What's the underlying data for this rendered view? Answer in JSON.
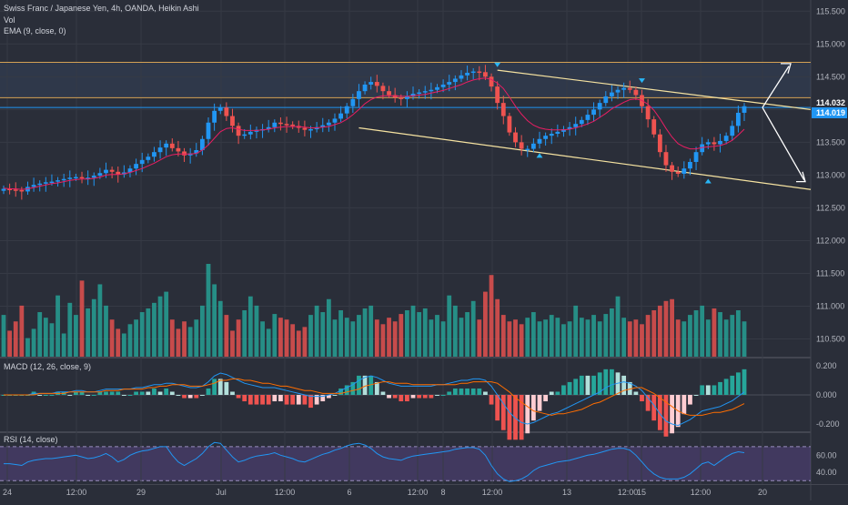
{
  "header": {
    "symbol": "Swiss Franc / Japanese Yen, 4h, OANDA, Heikin Ashi",
    "vol": "Vol",
    "ema": "EMA (9, close, 0)",
    "macd": "MACD (12, 26, close, 9)",
    "rsi": "RSI (14, close)"
  },
  "chart_data": [
    {
      "type": "candlestick",
      "title": "Swiss Franc / Japanese Yen, 4h, OANDA, Heikin Ashi",
      "x_ticks": [
        "24",
        "12:00",
        "29",
        "Jul",
        "12:00",
        "6",
        "12:00",
        "8",
        "12:00",
        "13",
        "12:00",
        "15",
        "12:00",
        "20"
      ],
      "price_ticks": [
        "115.500",
        "115.000",
        "114.500",
        "114.000",
        "113.500",
        "113.000",
        "112.500",
        "112.000",
        "111.500",
        "111.000",
        "110.500"
      ],
      "ylim": [
        110.23,
        115.67
      ],
      "last_price_labels": [
        "114.032",
        "114.019"
      ],
      "horizontal_levels": [
        114.72,
        114.18,
        114.03
      ],
      "colors": {
        "up": "#2196f3",
        "down": "#ef5350",
        "ema": "#e91e63",
        "channel": "#f6e3a1",
        "level": "#d4a054"
      },
      "series": [
        {
          "name": "Heikin Ashi",
          "values": [
            112.79,
            112.78,
            112.77,
            112.75,
            112.82,
            112.85,
            112.87,
            112.89,
            112.9,
            112.92,
            112.94,
            112.96,
            112.97,
            112.95,
            112.96,
            112.99,
            113.03,
            113.08,
            113.05,
            113.01,
            113.04,
            113.1,
            113.17,
            113.23,
            113.28,
            113.35,
            113.42,
            113.48,
            113.41,
            113.36,
            113.3,
            113.33,
            113.38,
            113.55,
            113.8,
            113.98,
            114.03,
            113.9,
            113.75,
            113.6,
            113.62,
            113.66,
            113.69,
            113.7,
            113.73,
            113.8,
            113.78,
            113.77,
            113.75,
            113.72,
            113.69,
            113.7,
            113.73,
            113.76,
            113.8,
            113.86,
            113.94,
            114.05,
            114.16,
            114.28,
            114.38,
            114.42,
            114.36,
            114.28,
            114.22,
            114.18,
            114.16,
            114.2,
            114.24,
            114.26,
            114.28,
            114.3,
            114.34,
            114.38,
            114.42,
            114.47,
            114.52,
            114.56,
            114.58,
            114.57,
            114.5,
            114.35,
            114.1,
            113.9,
            113.65,
            113.5,
            113.4,
            113.4,
            113.48,
            113.55,
            113.6,
            113.63,
            113.66,
            113.7,
            113.73,
            113.78,
            113.84,
            113.92,
            114.0,
            114.1,
            114.2,
            114.26,
            114.3,
            114.33,
            114.3,
            114.22,
            114.05,
            113.85,
            113.62,
            113.35,
            113.15,
            113.05,
            113.02,
            113.1,
            113.2,
            113.35,
            113.47,
            113.5,
            113.47,
            113.52,
            113.6,
            113.75,
            113.95,
            114.05
          ]
        },
        {
          "name": "EMA (9, close, 0)",
          "values": [
            112.8,
            112.79,
            112.79,
            112.78,
            112.79,
            112.81,
            112.83,
            112.85,
            112.87,
            112.88,
            112.9,
            112.92,
            112.93,
            112.94,
            112.94,
            112.95,
            112.97,
            113.0,
            113.01,
            113.01,
            113.02,
            113.04,
            113.07,
            113.1,
            113.14,
            113.18,
            113.23,
            113.28,
            113.31,
            113.32,
            113.32,
            113.32,
            113.33,
            113.38,
            113.46,
            113.56,
            113.66,
            113.71,
            113.72,
            113.7,
            113.68,
            113.68,
            113.68,
            113.69,
            113.7,
            113.72,
            113.73,
            113.74,
            113.74,
            113.74,
            113.73,
            113.72,
            113.72,
            113.73,
            113.74,
            113.77,
            113.8,
            113.85,
            113.92,
            114.0,
            114.09,
            114.15,
            114.19,
            114.21,
            114.21,
            114.21,
            114.2,
            114.2,
            114.21,
            114.22,
            114.23,
            114.25,
            114.27,
            114.29,
            114.32,
            114.35,
            114.38,
            114.42,
            114.45,
            114.47,
            114.48,
            114.46,
            114.4,
            114.32,
            114.19,
            114.05,
            113.93,
            113.83,
            113.76,
            113.72,
            113.7,
            113.69,
            113.69,
            113.69,
            113.7,
            113.72,
            113.75,
            113.78,
            113.82,
            113.88,
            113.94,
            114.01,
            114.06,
            114.11,
            114.15,
            114.16,
            114.14,
            114.08,
            113.99,
            113.86,
            113.71,
            113.58,
            113.48,
            113.43,
            113.4,
            113.4,
            113.42,
            113.43,
            113.44,
            113.45,
            113.48,
            113.53,
            113.61,
            113.7
          ]
        },
        {
          "name": "Vol",
          "values": [
            45,
            28,
            38,
            55,
            20,
            30,
            48,
            42,
            36,
            66,
            25,
            58,
            45,
            82,
            52,
            62,
            78,
            55,
            40,
            30,
            25,
            35,
            40,
            48,
            52,
            58,
            65,
            70,
            40,
            30,
            38,
            32,
            40,
            55,
            100,
            78,
            60,
            45,
            28,
            40,
            50,
            65,
            55,
            38,
            30,
            46,
            42,
            40,
            35,
            28,
            32,
            45,
            55,
            48,
            62,
            40,
            50,
            42,
            38,
            45,
            52,
            55,
            40,
            35,
            42,
            38,
            46,
            50,
            55,
            48,
            52,
            40,
            45,
            38,
            66,
            55,
            42,
            48,
            60,
            40,
            70,
            88,
            62,
            45,
            38,
            40,
            35,
            42,
            48,
            38,
            40,
            45,
            42,
            35,
            38,
            55,
            42,
            40,
            45,
            38,
            46,
            52,
            65,
            42,
            38,
            40,
            35,
            45,
            50,
            55,
            60,
            62,
            40,
            38,
            45,
            50,
            55,
            40,
            52,
            48,
            40,
            45,
            50,
            38
          ]
        },
        {
          "name": "MACD (12, 26, close, 9)",
          "values": [
            0.0,
            0.0,
            0.0,
            0.0,
            0.0,
            0.01,
            0.01,
            0.01,
            0.01,
            0.02,
            0.02,
            0.02,
            0.03,
            0.03,
            0.02,
            0.02,
            0.03,
            0.04,
            0.04,
            0.04,
            0.04,
            0.04,
            0.05,
            0.05,
            0.06,
            0.07,
            0.07,
            0.08,
            0.08,
            0.07,
            0.06,
            0.05,
            0.05,
            0.06,
            0.09,
            0.13,
            0.15,
            0.14,
            0.12,
            0.1,
            0.08,
            0.07,
            0.06,
            0.05,
            0.05,
            0.05,
            0.04,
            0.03,
            0.02,
            0.01,
            0.0,
            -0.01,
            -0.01,
            -0.01,
            0.0,
            0.01,
            0.03,
            0.05,
            0.07,
            0.1,
            0.12,
            0.13,
            0.12,
            0.1,
            0.08,
            0.07,
            0.06,
            0.06,
            0.06,
            0.06,
            0.06,
            0.06,
            0.07,
            0.07,
            0.08,
            0.09,
            0.1,
            0.1,
            0.11,
            0.11,
            0.1,
            0.06,
            0.0,
            -0.06,
            -0.12,
            -0.16,
            -0.19,
            -0.2,
            -0.19,
            -0.17,
            -0.15,
            -0.13,
            -0.12,
            -0.1,
            -0.08,
            -0.06,
            -0.04,
            -0.02,
            0.0,
            0.02,
            0.05,
            0.07,
            0.08,
            0.09,
            0.08,
            0.06,
            0.03,
            -0.02,
            -0.07,
            -0.13,
            -0.18,
            -0.2,
            -0.21,
            -0.19,
            -0.17,
            -0.14,
            -0.11,
            -0.1,
            -0.09,
            -0.08,
            -0.06,
            -0.04,
            -0.01,
            0.02
          ]
        },
        {
          "name": "MACD signal",
          "values": [
            0.0,
            0.0,
            0.0,
            0.0,
            0.0,
            0.0,
            0.01,
            0.01,
            0.01,
            0.01,
            0.01,
            0.02,
            0.02,
            0.02,
            0.02,
            0.02,
            0.02,
            0.03,
            0.03,
            0.03,
            0.04,
            0.04,
            0.04,
            0.04,
            0.05,
            0.05,
            0.06,
            0.06,
            0.07,
            0.07,
            0.07,
            0.06,
            0.06,
            0.06,
            0.07,
            0.08,
            0.1,
            0.1,
            0.11,
            0.11,
            0.1,
            0.1,
            0.09,
            0.08,
            0.08,
            0.07,
            0.06,
            0.06,
            0.05,
            0.04,
            0.03,
            0.03,
            0.02,
            0.01,
            0.01,
            0.01,
            0.01,
            0.02,
            0.03,
            0.04,
            0.06,
            0.07,
            0.08,
            0.09,
            0.09,
            0.08,
            0.08,
            0.08,
            0.07,
            0.07,
            0.07,
            0.07,
            0.07,
            0.07,
            0.07,
            0.07,
            0.08,
            0.08,
            0.09,
            0.09,
            0.09,
            0.09,
            0.08,
            0.05,
            0.02,
            -0.02,
            -0.05,
            -0.08,
            -0.11,
            -0.12,
            -0.13,
            -0.14,
            -0.13,
            -0.13,
            -0.12,
            -0.11,
            -0.1,
            -0.08,
            -0.06,
            -0.05,
            -0.03,
            -0.01,
            0.01,
            0.03,
            0.04,
            0.05,
            0.05,
            0.03,
            0.01,
            -0.02,
            -0.05,
            -0.08,
            -0.11,
            -0.13,
            -0.14,
            -0.14,
            -0.14,
            -0.13,
            -0.12,
            -0.12,
            -0.11,
            -0.1,
            -0.08,
            -0.06
          ]
        },
        {
          "name": "RSI (14, close)",
          "values": [
            50,
            50,
            49,
            48,
            52,
            54,
            55,
            56,
            56,
            57,
            58,
            59,
            60,
            58,
            56,
            57,
            59,
            62,
            58,
            52,
            55,
            60,
            63,
            65,
            66,
            68,
            70,
            70,
            60,
            52,
            48,
            52,
            56,
            62,
            70,
            75,
            74,
            66,
            58,
            52,
            54,
            57,
            59,
            60,
            61,
            63,
            60,
            58,
            56,
            53,
            52,
            55,
            58,
            61,
            63,
            66,
            68,
            71,
            73,
            74,
            72,
            68,
            62,
            58,
            56,
            55,
            54,
            57,
            59,
            60,
            61,
            62,
            63,
            64,
            65,
            67,
            68,
            69,
            69,
            67,
            60,
            48,
            38,
            32,
            29,
            30,
            32,
            36,
            42,
            46,
            48,
            50,
            52,
            53,
            54,
            56,
            58,
            60,
            61,
            63,
            65,
            67,
            68,
            68,
            66,
            60,
            52,
            44,
            38,
            34,
            32,
            32,
            32,
            34,
            38,
            44,
            50,
            52,
            48,
            53,
            58,
            62,
            64,
            63
          ]
        }
      ],
      "macd_ticks": [
        "0.200",
        "0.000",
        "-0.200"
      ],
      "macd_ylim": [
        -0.25,
        0.25
      ],
      "rsi_ticks": [
        "60.00",
        "40.00"
      ],
      "rsi_ylim": [
        26,
        86
      ],
      "annotations": [
        "price channel (descending)",
        "breakout arrow up",
        "breakdown arrow down",
        "swing markers"
      ]
    }
  ]
}
